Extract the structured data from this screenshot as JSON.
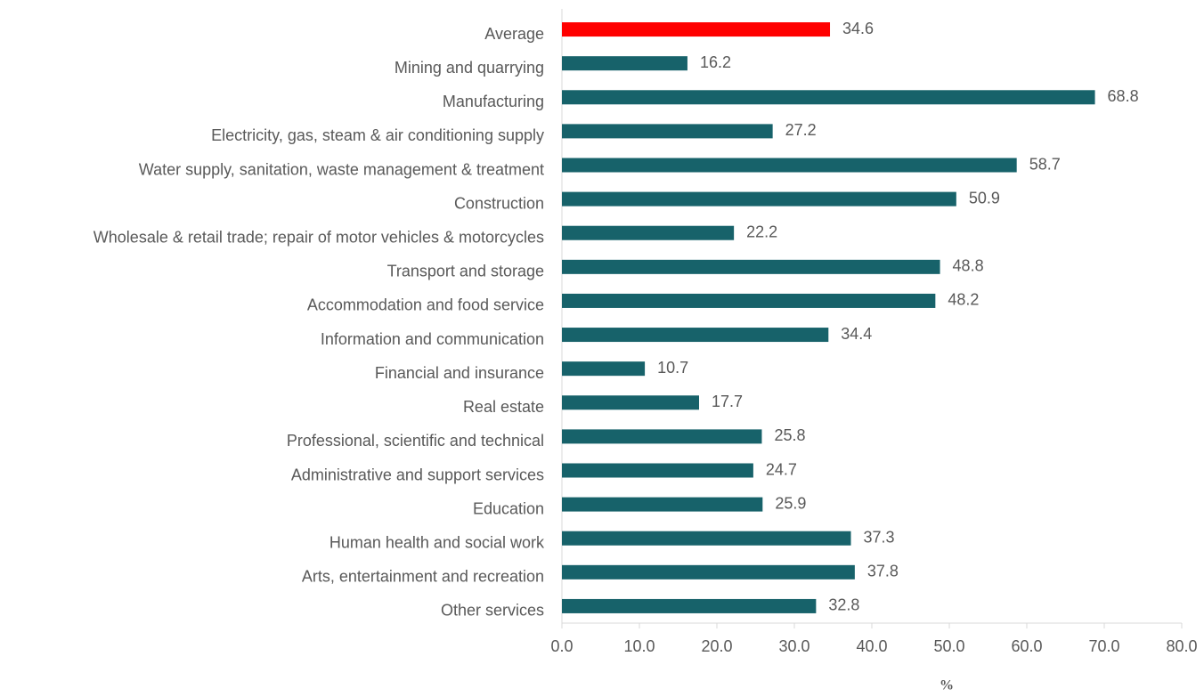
{
  "chart_data": {
    "type": "barh",
    "xlabel": "%",
    "categories": [
      "Average",
      "Mining and quarrying",
      "Manufacturing",
      "Electricity, gas, steam & air conditioning supply",
      "Water supply, sanitation, waste management & treatment",
      "Construction",
      "Wholesale & retail trade; repair of motor vehicles & motorcycles",
      "Transport and storage",
      "Accommodation and food service",
      "Information and communication",
      "Financial and insurance",
      "Real estate",
      "Professional, scientific and technical",
      "Administrative and support services",
      "Education",
      "Human health and social work",
      "Arts, entertainment and recreation",
      "Other services"
    ],
    "values": [
      34.6,
      16.2,
      68.8,
      27.2,
      58.7,
      50.9,
      22.2,
      48.8,
      48.2,
      34.4,
      10.7,
      17.7,
      25.8,
      24.7,
      25.9,
      37.3,
      37.8,
      32.8
    ],
    "colors": [
      "#ff0000",
      "#17626a",
      "#17626a",
      "#17626a",
      "#17626a",
      "#17626a",
      "#17626a",
      "#17626a",
      "#17626a",
      "#17626a",
      "#17626a",
      "#17626a",
      "#17626a",
      "#17626a",
      "#17626a",
      "#17626a",
      "#17626a",
      "#17626a"
    ],
    "xlim": [
      0,
      80
    ],
    "xticks": [
      {
        "value": 0,
        "label": "0.0"
      },
      {
        "value": 10,
        "label": "10.0"
      },
      {
        "value": 20,
        "label": "20.0"
      },
      {
        "value": 30,
        "label": "30.0"
      },
      {
        "value": 40,
        "label": "40.0"
      },
      {
        "value": 50,
        "label": "50.0"
      },
      {
        "value": 60,
        "label": "60.0"
      },
      {
        "value": 70,
        "label": "70.0"
      },
      {
        "value": 80,
        "label": "80.0"
      }
    ]
  }
}
